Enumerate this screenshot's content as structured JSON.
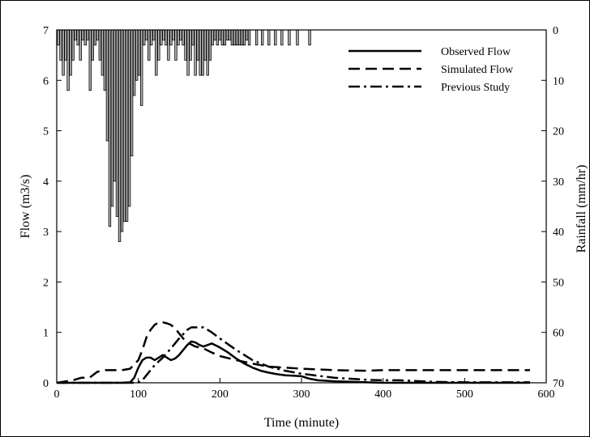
{
  "chart_data": {
    "type": "line",
    "title": "",
    "xlabel": "Time (minute)",
    "ylabel": "Flow (m3/s)",
    "y2label": "Rainfall (mm/hr)",
    "xlim": [
      0,
      600
    ],
    "ylim": [
      0,
      7
    ],
    "y2lim": [
      0,
      70
    ],
    "y2_inverted": true,
    "xticks": [
      0,
      100,
      200,
      300,
      400,
      500,
      600
    ],
    "yticks": [
      0,
      1,
      2,
      3,
      4,
      5,
      6,
      7
    ],
    "y2ticks": [
      0,
      10,
      20,
      30,
      40,
      50,
      60,
      70
    ],
    "grid": false,
    "legend_position": "top-right",
    "series": [
      {
        "name": "Observed Flow",
        "style": "solid",
        "x": [
          0,
          20,
          40,
          60,
          80,
          90,
          95,
          100,
          105,
          110,
          115,
          120,
          125,
          130,
          135,
          140,
          145,
          150,
          155,
          160,
          165,
          170,
          175,
          180,
          185,
          190,
          200,
          210,
          220,
          230,
          240,
          250,
          260,
          270,
          280,
          290,
          300,
          310,
          320,
          340,
          360,
          380,
          400,
          450,
          500,
          580
        ],
        "y": [
          0,
          0,
          0,
          0,
          0,
          0.01,
          0.1,
          0.3,
          0.45,
          0.5,
          0.5,
          0.45,
          0.5,
          0.55,
          0.5,
          0.45,
          0.48,
          0.55,
          0.65,
          0.75,
          0.82,
          0.8,
          0.75,
          0.72,
          0.75,
          0.78,
          0.7,
          0.6,
          0.48,
          0.38,
          0.3,
          0.24,
          0.2,
          0.17,
          0.15,
          0.14,
          0.13,
          0.08,
          0.05,
          0.03,
          0.02,
          0.01,
          0,
          0,
          0,
          0
        ]
      },
      {
        "name": "Simulated Flow",
        "style": "dashed",
        "x": [
          0,
          20,
          30,
          40,
          50,
          60,
          80,
          90,
          100,
          105,
          110,
          115,
          120,
          125,
          130,
          135,
          140,
          145,
          150,
          155,
          160,
          170,
          180,
          190,
          200,
          220,
          240,
          260,
          280,
          300,
          340,
          380,
          400,
          420,
          450,
          500,
          580
        ],
        "y": [
          0,
          0.05,
          0.1,
          0.1,
          0.22,
          0.25,
          0.25,
          0.28,
          0.45,
          0.65,
          0.9,
          1.05,
          1.15,
          1.2,
          1.2,
          1.18,
          1.15,
          1.08,
          0.98,
          0.88,
          0.8,
          0.72,
          0.68,
          0.6,
          0.53,
          0.45,
          0.38,
          0.32,
          0.3,
          0.28,
          0.25,
          0.24,
          0.25,
          0.25,
          0.25,
          0.25,
          0.25
        ]
      },
      {
        "name": "Previous Study",
        "style": "dash-dot",
        "x": [
          0,
          40,
          80,
          95,
          100,
          105,
          110,
          120,
          130,
          140,
          150,
          160,
          165,
          170,
          180,
          190,
          200,
          220,
          240,
          260,
          280,
          300,
          340,
          380,
          400,
          420,
          460,
          500,
          580
        ],
        "y": [
          0,
          0,
          0,
          0,
          0.01,
          0.05,
          0.15,
          0.35,
          0.5,
          0.68,
          0.88,
          1.05,
          1.1,
          1.1,
          1.1,
          1.0,
          0.88,
          0.65,
          0.45,
          0.32,
          0.24,
          0.18,
          0.1,
          0.06,
          0.05,
          0.05,
          0.02,
          0.01,
          0.01
        ]
      },
      {
        "name": "Rainfall",
        "type": "bar",
        "axis": "y2",
        "x": [
          2,
          5,
          8,
          11,
          14,
          17,
          20,
          23,
          26,
          29,
          32,
          35,
          38,
          41,
          44,
          47,
          50,
          53,
          56,
          59,
          62,
          65,
          68,
          71,
          74,
          77,
          80,
          83,
          86,
          89,
          92,
          95,
          98,
          101,
          104,
          107,
          110,
          113,
          116,
          119,
          122,
          125,
          128,
          131,
          134,
          137,
          140,
          143,
          146,
          149,
          152,
          155,
          158,
          161,
          164,
          167,
          170,
          173,
          176,
          179,
          182,
          185,
          188,
          191,
          194,
          197,
          200,
          203,
          206,
          209,
          212,
          215,
          218,
          221,
          224,
          227,
          230,
          233,
          236,
          245,
          252,
          260,
          268,
          276,
          285,
          295,
          310
        ],
        "values": [
          3,
          6,
          9,
          6,
          12,
          9,
          6,
          2,
          3,
          6,
          2,
          3,
          2,
          12,
          6,
          3,
          2,
          6,
          9,
          12,
          22,
          39,
          35,
          30,
          37,
          42,
          40,
          38,
          38,
          35,
          25,
          13,
          10,
          9,
          15,
          3,
          2,
          6,
          3,
          2,
          9,
          6,
          3,
          2,
          3,
          6,
          3,
          2,
          6,
          3,
          2,
          3,
          6,
          9,
          6,
          3,
          9,
          6,
          9,
          9,
          6,
          9,
          6,
          3,
          2,
          3,
          2,
          3,
          3,
          2,
          2,
          3,
          3,
          3,
          3,
          3,
          3,
          2,
          3,
          3,
          3,
          3,
          3,
          3,
          3,
          3,
          3
        ]
      }
    ]
  }
}
